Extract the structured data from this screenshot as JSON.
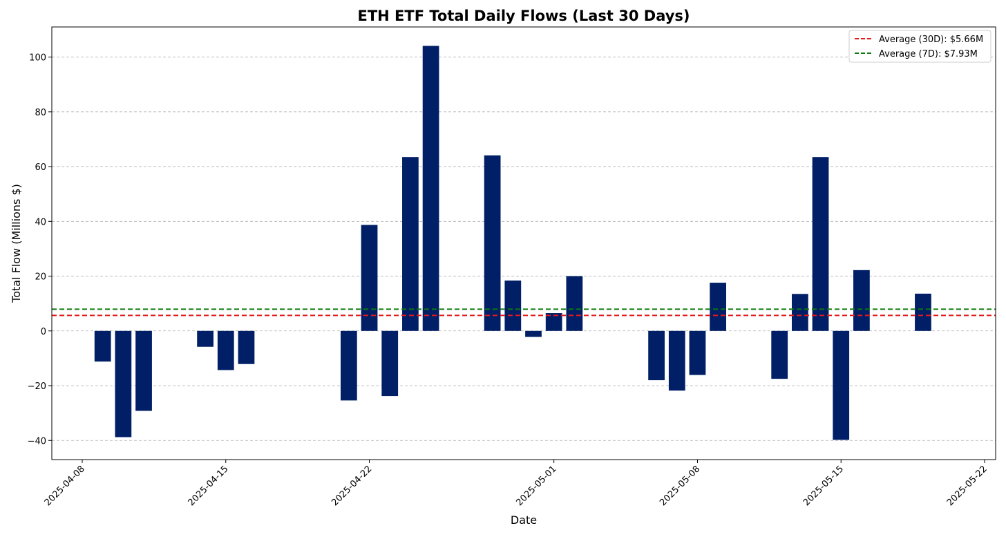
{
  "colors": {
    "bar": "#001f66",
    "avg30": "#e41a1c",
    "avg7": "#0a7a0a"
  },
  "chart_data": {
    "type": "bar",
    "title": "ETH ETF Total Daily Flows (Last 30 Days)",
    "xlabel": "Date",
    "ylabel": "Total Flow (Millions $)",
    "xlim": [
      "2025-04-08",
      "2025-05-22"
    ],
    "ylim": [
      -47,
      111
    ],
    "yticks": [
      -40,
      -20,
      0,
      20,
      40,
      60,
      80,
      100
    ],
    "xticks": [
      "2025-04-08",
      "2025-04-15",
      "2025-04-22",
      "2025-05-01",
      "2025-05-08",
      "2025-05-15",
      "2025-05-22"
    ],
    "grid": "y-dashed",
    "legend": {
      "position": "top-right"
    },
    "series": [
      {
        "dates": [
          "2025-04-09",
          "2025-04-10",
          "2025-04-11",
          "2025-04-14",
          "2025-04-15",
          "2025-04-16",
          "2025-04-21",
          "2025-04-22",
          "2025-04-23",
          "2025-04-24",
          "2025-04-25",
          "2025-04-28",
          "2025-04-29",
          "2025-04-30",
          "2025-05-01",
          "2025-05-02",
          "2025-05-06",
          "2025-05-07",
          "2025-05-08",
          "2025-05-09",
          "2025-05-12",
          "2025-05-13",
          "2025-05-14",
          "2025-05-15",
          "2025-05-16",
          "2025-05-19"
        ],
        "values": [
          -11.2,
          -38.8,
          -29.2,
          -5.8,
          -14.3,
          -12.1,
          -25.4,
          38.7,
          -23.8,
          63.5,
          104.1,
          64.1,
          18.4,
          -2.2,
          6.5,
          20.0,
          -18.0,
          -21.8,
          -16.1,
          17.6,
          -17.5,
          13.5,
          63.5,
          -39.8,
          22.2,
          13.6
        ]
      }
    ],
    "reference_lines": [
      {
        "name": "Average (30D): $5.66M",
        "value": 5.66,
        "color_key": "avg30"
      },
      {
        "name": "Average (7D): $7.93M",
        "value": 7.93,
        "color_key": "avg7"
      }
    ]
  }
}
